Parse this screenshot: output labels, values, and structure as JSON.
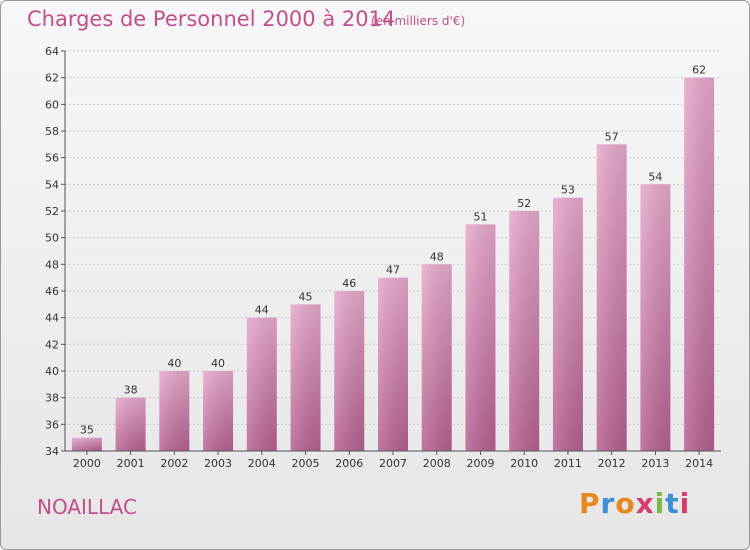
{
  "header": {
    "title": "Charges de Personnel 2000 à 2014",
    "subtitle": "(en milliers d'€)"
  },
  "footer": {
    "commune": "NOAILLAC",
    "logo": "Proxiti",
    "logo_colors": [
      "#e8891f",
      "#3d8fd4",
      "#e8891f",
      "#d63c6e",
      "#7ab648",
      "#3d8fd4",
      "#d63c6e"
    ]
  },
  "chart_data": {
    "type": "bar",
    "title": "Charges de Personnel 2000 à 2014",
    "categories": [
      "2000",
      "2001",
      "2002",
      "2003",
      "2004",
      "2005",
      "2006",
      "2007",
      "2008",
      "2009",
      "2010",
      "2011",
      "2012",
      "2013",
      "2014"
    ],
    "values": [
      35,
      38,
      40,
      40,
      44,
      45,
      46,
      47,
      48,
      51,
      52,
      53,
      57,
      54,
      62
    ],
    "ylim": [
      34,
      64
    ],
    "yticks": [
      34,
      36,
      38,
      40,
      42,
      44,
      46,
      48,
      50,
      52,
      54,
      56,
      58,
      60,
      62,
      64
    ],
    "grid": true,
    "bar_color": "#d98ab5",
    "xlabel": "",
    "ylabel": ""
  }
}
